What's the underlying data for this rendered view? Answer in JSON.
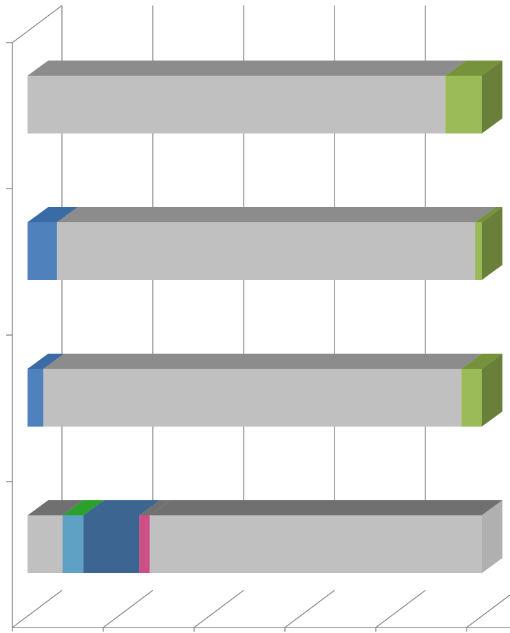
{
  "chart_data": {
    "type": "bar",
    "orientation": "horizontal",
    "stacked": "percent",
    "three_d": true,
    "grid": true,
    "legend": "none",
    "categories": [
      "",
      "",
      "",
      ""
    ],
    "xlim": [
      0,
      100
    ],
    "bars": [
      {
        "segments": [
          {
            "value": 92,
            "color": "#c0c0c0",
            "top": "#8c8c8c"
          },
          {
            "value": 8,
            "color": "#9bbb59",
            "top": "#76933c",
            "side": "#6a7f3a"
          }
        ]
      },
      {
        "segments": [
          {
            "value": 6.5,
            "color": "#4f81bd",
            "top": "#3a6ba5"
          },
          {
            "value": 92,
            "color": "#c0c0c0",
            "top": "#8c8c8c"
          },
          {
            "value": 1.5,
            "color": "#9bbb59",
            "top": "#76933c",
            "side": "#6a7f3a"
          }
        ]
      },
      {
        "segments": [
          {
            "value": 3.5,
            "color": "#4f81bd",
            "top": "#3a6ba5"
          },
          {
            "value": 92,
            "color": "#c0c0c0",
            "top": "#8c8c8c"
          },
          {
            "value": 4.5,
            "color": "#9bbb59",
            "top": "#76933c",
            "side": "#6a7f3a"
          }
        ]
      },
      {
        "segments": [
          {
            "value": 7.7,
            "color": "#c0c0c0",
            "top": "#707070"
          },
          {
            "value": 4.6,
            "color": "#5fa0c5",
            "top": "#2ca02c",
            "side": "#3d6b80"
          },
          {
            "value": 12.3,
            "color": "#3c6592",
            "top": "#3c6592"
          },
          {
            "value": 2.3,
            "color": "#cc4f85",
            "top": "#707070"
          },
          {
            "value": 73.1,
            "color": "#c0c0c0",
            "top": "#707070",
            "side": "#b0b0b0"
          }
        ]
      }
    ]
  }
}
